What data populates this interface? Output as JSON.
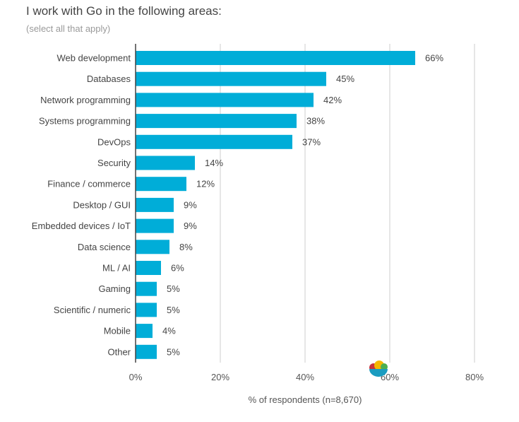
{
  "chart_data": {
    "type": "bar",
    "orientation": "horizontal",
    "title": "I work with Go in the following areas:",
    "subtitle": "(select all that apply)",
    "xlabel": "% of respondents (n=8,670)",
    "ylabel": "",
    "categories": [
      "Web development",
      "Databases",
      "Network programming",
      "Systems programming",
      "DevOps",
      "Security",
      "Finance / commerce",
      "Desktop / GUI",
      "Embedded devices / IoT",
      "Data science",
      "ML / AI",
      "Gaming",
      "Scientific / numeric",
      "Mobile",
      "Other"
    ],
    "values": [
      66,
      45,
      42,
      38,
      37,
      14,
      12,
      9,
      9,
      8,
      6,
      5,
      5,
      4,
      5
    ],
    "data_labels": [
      "66%",
      "45%",
      "42%",
      "38%",
      "37%",
      "14%",
      "12%",
      "9%",
      "9%",
      "8%",
      "6%",
      "5%",
      "5%",
      "4%",
      "5%"
    ],
    "xlim": [
      0,
      80
    ],
    "xticks": [
      "0%",
      "20%",
      "40%",
      "60%",
      "80%"
    ],
    "grid": true,
    "bar_color": "#00ADD8",
    "icon": "fruit-bowl-icon"
  }
}
